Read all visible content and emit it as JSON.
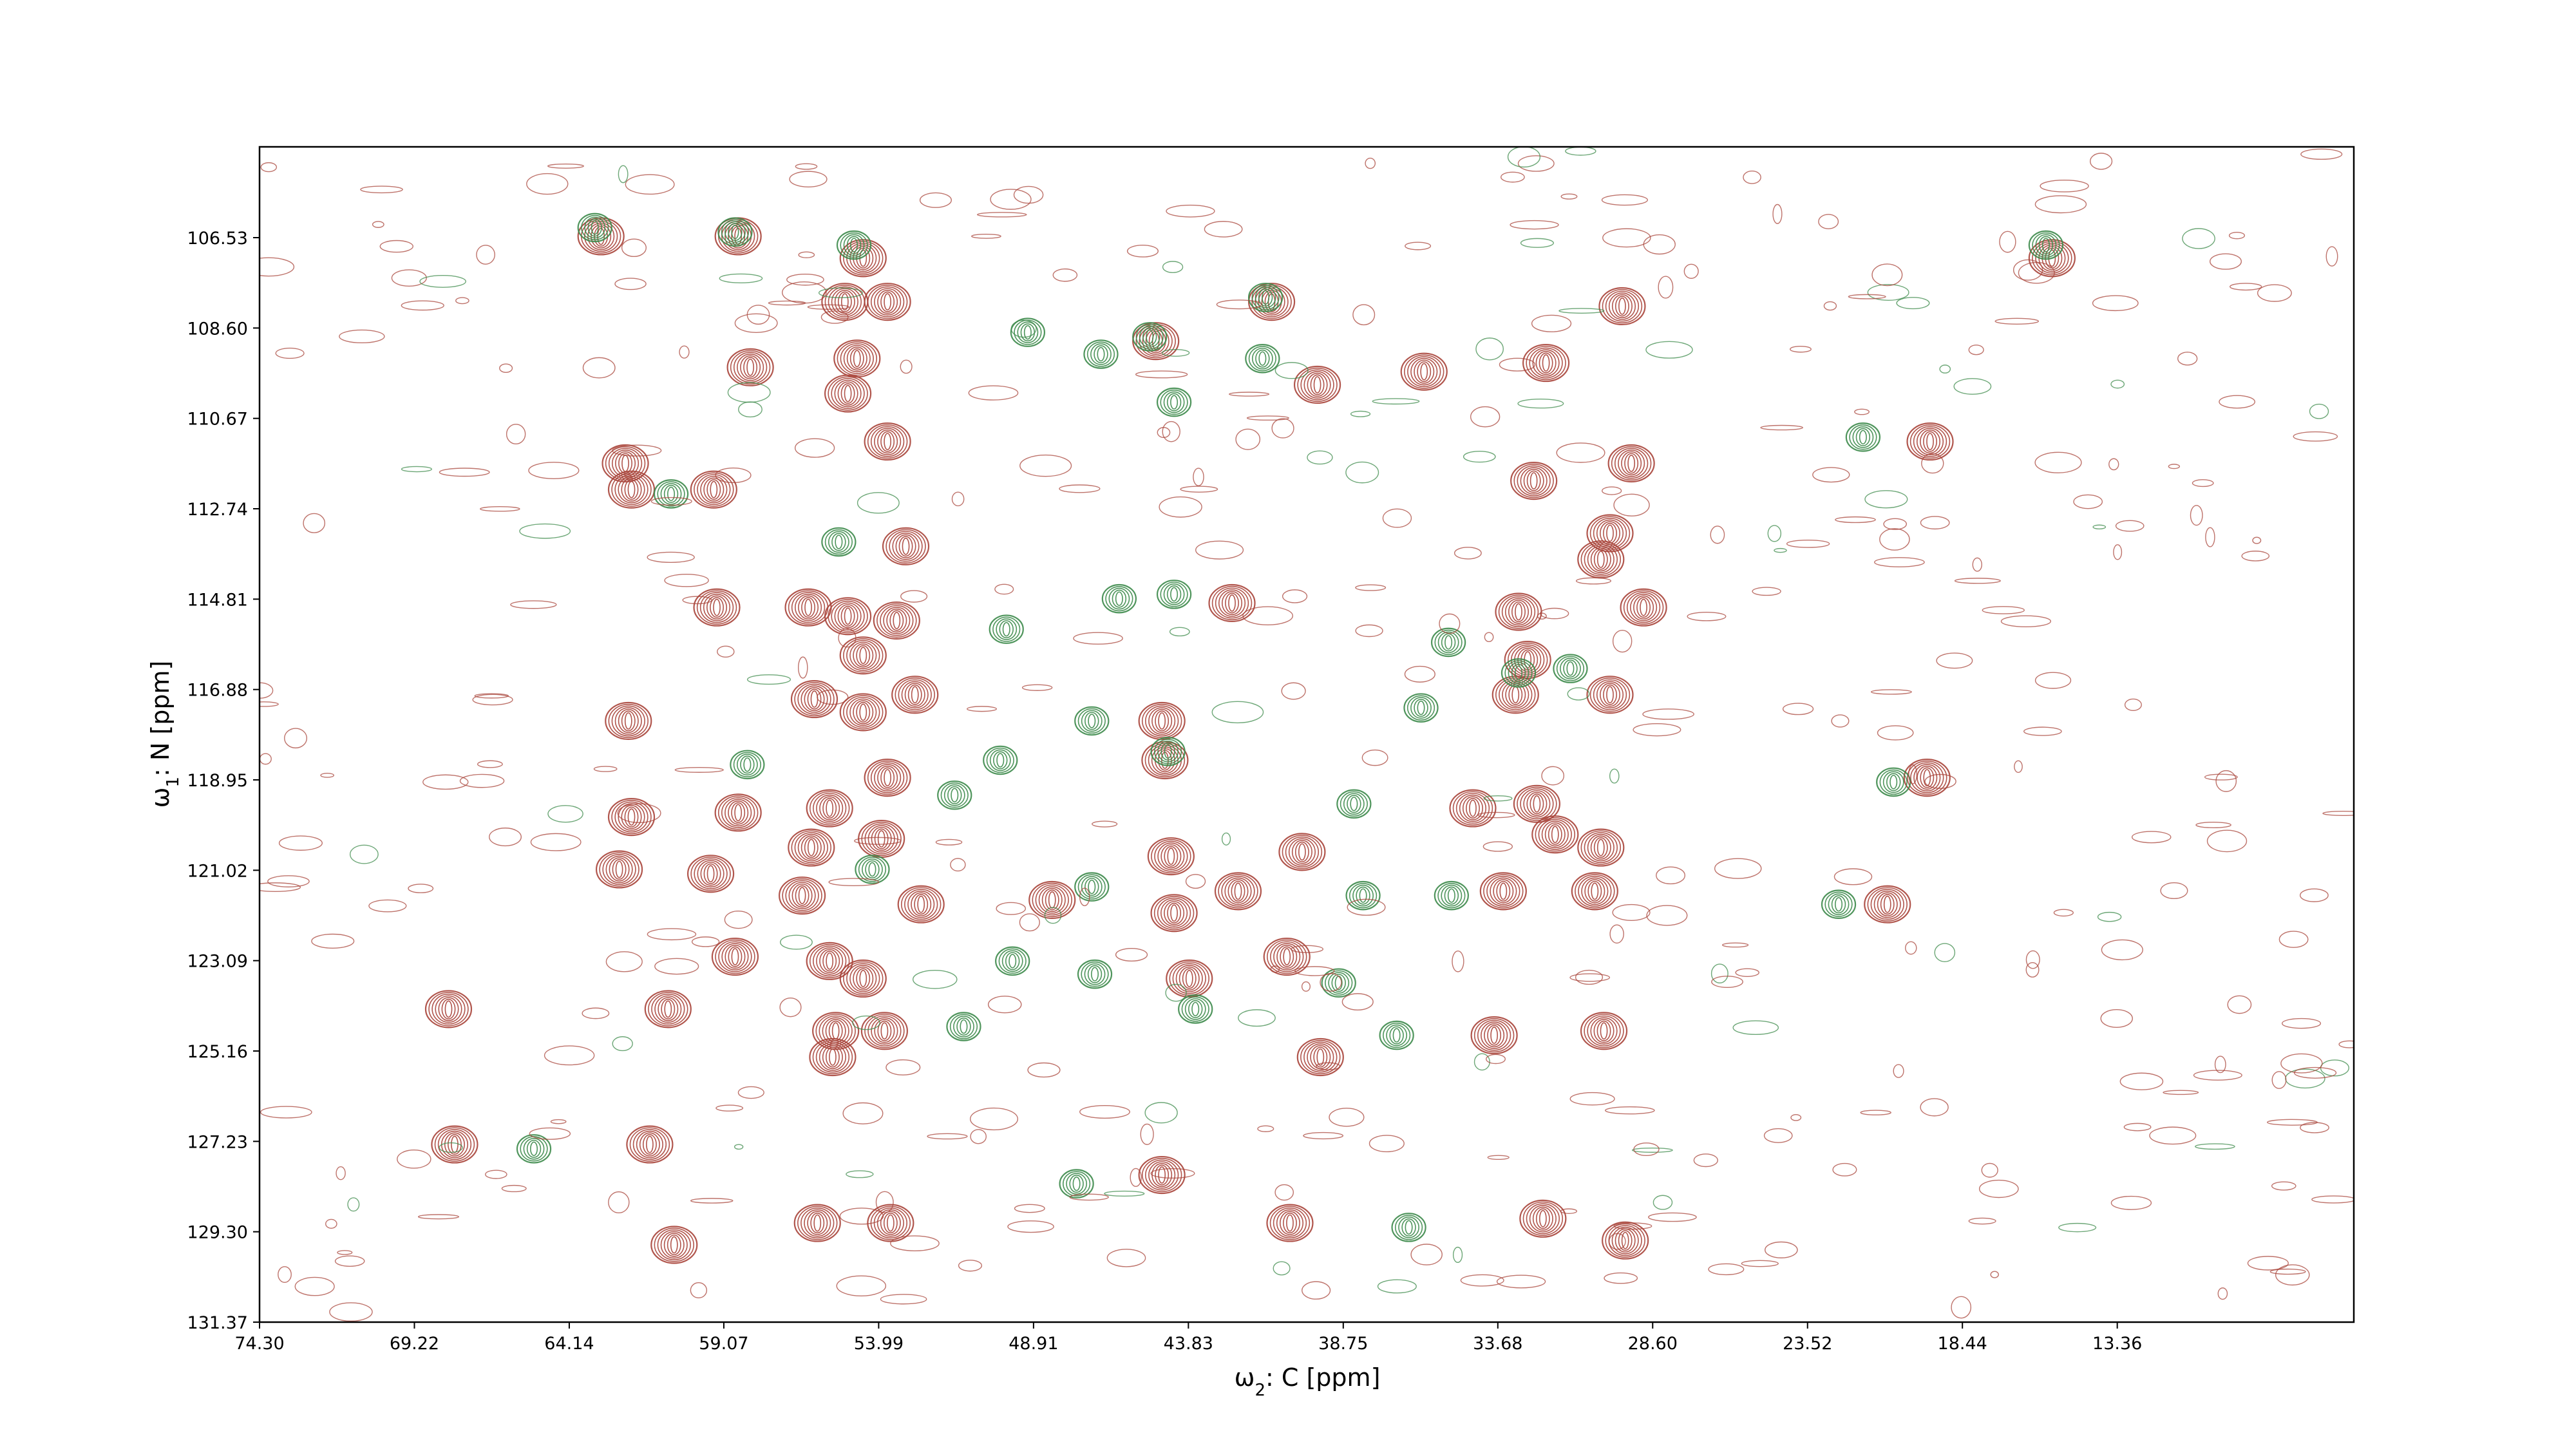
{
  "chart_data": {
    "type": "contour",
    "title": "",
    "xlabel_symbol": "ω",
    "xlabel_sub": "2",
    "xlabel_rest": ": C [ppm]",
    "ylabel_symbol": "ω",
    "ylabel_sub": "1",
    "ylabel_rest": ": N [ppm]",
    "xlim": [
      74.3,
      5.6
    ],
    "ylim": [
      131.37,
      104.45
    ],
    "x_ticks": [
      "74.30",
      "69.22",
      "64.14",
      "59.07",
      "53.99",
      "48.91",
      "43.83",
      "38.75",
      "33.68",
      "28.60",
      "23.52",
      "18.44",
      "13.36"
    ],
    "y_ticks": [
      "106.53",
      "108.60",
      "110.67",
      "112.74",
      "114.81",
      "116.88",
      "118.95",
      "121.02",
      "123.09",
      "125.16",
      "127.23",
      "129.30",
      "131.37"
    ],
    "grid": false,
    "legend": false,
    "series": [
      {
        "color": "#a8443a",
        "peaks": [
          [
            63.1,
            106.5
          ],
          [
            58.6,
            106.5
          ],
          [
            54.5,
            107.0
          ],
          [
            55.1,
            108.0
          ],
          [
            53.7,
            108.0
          ],
          [
            41.1,
            108.0
          ],
          [
            29.6,
            108.1
          ],
          [
            44.9,
            108.9
          ],
          [
            58.2,
            109.5
          ],
          [
            54.7,
            109.3
          ],
          [
            55.0,
            110.1
          ],
          [
            39.6,
            109.9
          ],
          [
            36.1,
            109.6
          ],
          [
            32.1,
            109.4
          ],
          [
            15.5,
            107.0
          ],
          [
            53.7,
            111.2
          ],
          [
            62.1,
            112.3
          ],
          [
            62.3,
            111.7
          ],
          [
            59.4,
            112.3
          ],
          [
            53.1,
            113.6
          ],
          [
            32.5,
            112.1
          ],
          [
            29.3,
            111.7
          ],
          [
            19.5,
            111.2
          ],
          [
            30.0,
            113.3
          ],
          [
            30.3,
            113.9
          ],
          [
            59.3,
            115.0
          ],
          [
            56.3,
            115.0
          ],
          [
            55.0,
            115.2
          ],
          [
            53.4,
            115.3
          ],
          [
            54.5,
            116.1
          ],
          [
            42.4,
            114.9
          ],
          [
            32.7,
            116.2
          ],
          [
            33.0,
            115.1
          ],
          [
            28.9,
            115.0
          ],
          [
            56.1,
            117.1
          ],
          [
            54.5,
            117.4
          ],
          [
            52.8,
            117.0
          ],
          [
            44.7,
            117.6
          ],
          [
            44.6,
            118.5
          ],
          [
            30.0,
            117.0
          ],
          [
            33.1,
            117.0
          ],
          [
            62.2,
            117.6
          ],
          [
            53.7,
            118.9
          ],
          [
            58.6,
            119.7
          ],
          [
            55.6,
            119.6
          ],
          [
            62.1,
            119.8
          ],
          [
            56.2,
            120.5
          ],
          [
            53.9,
            120.3
          ],
          [
            44.4,
            120.7
          ],
          [
            40.1,
            120.6
          ],
          [
            34.5,
            119.6
          ],
          [
            32.4,
            119.5
          ],
          [
            31.8,
            120.2
          ],
          [
            30.3,
            120.5
          ],
          [
            19.6,
            118.9
          ],
          [
            59.5,
            121.1
          ],
          [
            56.5,
            121.6
          ],
          [
            52.6,
            121.8
          ],
          [
            48.3,
            121.7
          ],
          [
            44.3,
            122.0
          ],
          [
            42.2,
            121.5
          ],
          [
            33.5,
            121.5
          ],
          [
            30.5,
            121.5
          ],
          [
            20.9,
            121.8
          ],
          [
            62.5,
            121.0
          ],
          [
            58.7,
            123.0
          ],
          [
            55.6,
            123.1
          ],
          [
            54.5,
            123.5
          ],
          [
            43.8,
            123.5
          ],
          [
            40.6,
            123.0
          ],
          [
            68.1,
            124.2
          ],
          [
            60.9,
            124.2
          ],
          [
            55.4,
            124.7
          ],
          [
            53.8,
            124.7
          ],
          [
            33.8,
            124.8
          ],
          [
            30.2,
            124.7
          ],
          [
            55.5,
            125.3
          ],
          [
            39.5,
            125.3
          ],
          [
            67.9,
            127.3
          ],
          [
            61.5,
            127.3
          ],
          [
            44.7,
            128.0
          ],
          [
            56.0,
            129.1
          ],
          [
            53.6,
            129.1
          ],
          [
            40.5,
            129.1
          ],
          [
            32.2,
            129.0
          ],
          [
            29.5,
            129.5
          ],
          [
            60.7,
            129.6
          ]
        ]
      },
      {
        "color": "#3c8a4a",
        "peaks": [
          [
            63.3,
            106.3
          ],
          [
            58.7,
            106.4
          ],
          [
            54.8,
            106.7
          ],
          [
            15.7,
            106.7
          ],
          [
            41.3,
            107.9
          ],
          [
            45.1,
            108.8
          ],
          [
            46.7,
            109.2
          ],
          [
            41.4,
            109.3
          ],
          [
            44.3,
            110.3
          ],
          [
            49.1,
            108.7
          ],
          [
            21.7,
            111.1
          ],
          [
            60.8,
            112.4
          ],
          [
            55.3,
            113.5
          ],
          [
            46.1,
            114.8
          ],
          [
            44.3,
            114.7
          ],
          [
            35.3,
            115.8
          ],
          [
            31.3,
            116.4
          ],
          [
            49.8,
            115.5
          ],
          [
            33.0,
            116.5
          ],
          [
            36.2,
            117.3
          ],
          [
            47.0,
            117.6
          ],
          [
            50.0,
            118.5
          ],
          [
            44.5,
            118.3
          ],
          [
            58.3,
            118.6
          ],
          [
            51.5,
            119.3
          ],
          [
            38.4,
            119.5
          ],
          [
            20.7,
            119.0
          ],
          [
            54.2,
            121.0
          ],
          [
            47.0,
            121.4
          ],
          [
            38.1,
            121.6
          ],
          [
            35.2,
            121.6
          ],
          [
            22.5,
            121.8
          ],
          [
            49.6,
            123.1
          ],
          [
            46.9,
            123.4
          ],
          [
            38.9,
            123.6
          ],
          [
            51.2,
            124.6
          ],
          [
            43.6,
            124.2
          ],
          [
            37.0,
            124.8
          ],
          [
            47.5,
            128.2
          ],
          [
            36.6,
            129.2
          ],
          [
            65.3,
            127.4
          ]
        ]
      }
    ]
  }
}
